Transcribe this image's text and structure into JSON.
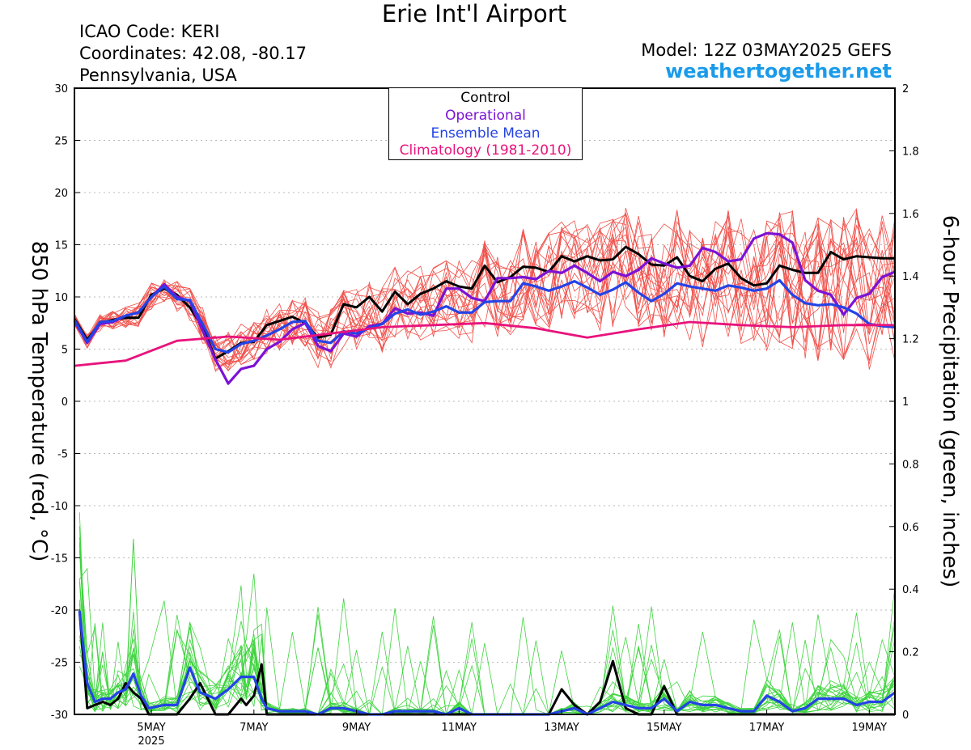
{
  "header": {
    "title": "Erie Int'l Airport",
    "icao": "ICAO Code: KERI",
    "coords": "Coordinates: 42.08, -80.17",
    "region": "Pennsylvania, USA",
    "model": "Model: 12Z 03MAY2025 GEFS",
    "site": "weathertogether.net"
  },
  "colors": {
    "member_temp": "#f0504a",
    "member_precip": "#3ed43e",
    "control": "#000000",
    "operational": "#7b12d6",
    "mean": "#2443e6",
    "climatology": "#e8137c"
  },
  "chart_data": {
    "type": "line",
    "title": "Erie Int'l Airport",
    "ylabel": "850 hPa Temperature (red, °C)",
    "y2label": "6-hour Precipitation (green, inches)",
    "ylim": [
      -30,
      30
    ],
    "y2lim": [
      0,
      2
    ],
    "yticks": [
      30,
      25,
      20,
      15,
      10,
      5,
      0,
      -5,
      -10,
      -15,
      -20,
      -25,
      -30
    ],
    "y2ticks": [
      "2",
      "1.8",
      "1.6",
      "1.4",
      "1.2",
      "1",
      "0.8",
      "0.6",
      "0.4",
      "0.2",
      "0"
    ],
    "xlim": [
      3.5,
      19.5
    ],
    "xticks": [
      {
        "day": 5,
        "label": "5MAY",
        "sub": "2025"
      },
      {
        "day": 7,
        "label": "7MAY"
      },
      {
        "day": 9,
        "label": "9MAY"
      },
      {
        "day": 11,
        "label": "11MAY"
      },
      {
        "day": 13,
        "label": "13MAY"
      },
      {
        "day": 15,
        "label": "15MAY"
      },
      {
        "day": 17,
        "label": "17MAY"
      },
      {
        "day": 19,
        "label": "19MAY"
      }
    ],
    "legend": [
      "Control",
      "Operational",
      "Ensemble Mean",
      "Climatology (1981-2010)"
    ],
    "legend_position": "top-center",
    "grid": "horizontal dotted",
    "series": [
      {
        "name": "Control",
        "axis": "temp",
        "x": [
          3.5,
          3.75,
          4.0,
          4.25,
          4.5,
          4.75,
          5.0,
          5.25,
          5.5,
          5.75,
          6.0,
          6.25,
          6.5,
          6.75,
          7.0,
          7.25,
          7.5,
          7.75,
          8.0,
          8.25,
          8.5,
          8.75,
          9.0,
          9.25,
          9.5,
          9.75,
          10.0,
          10.25,
          10.5,
          10.75,
          11.0,
          11.25,
          11.5,
          11.75,
          12.0,
          12.25,
          12.5,
          12.75,
          13.0,
          13.25,
          13.5,
          13.75,
          14.0,
          14.25,
          14.5,
          14.75,
          15.0,
          15.25,
          15.5,
          15.75,
          16.0,
          16.25,
          16.5,
          16.75,
          17.0,
          17.25,
          17.5,
          17.75,
          18.0,
          18.25,
          18.5,
          18.75,
          19.0,
          19.25,
          19.5
        ],
        "y": [
          7.9,
          5.9,
          7.5,
          7.8,
          8.0,
          8.0,
          10.2,
          10.8,
          10.2,
          9.0,
          7.1,
          4.1,
          4.8,
          5.6,
          5.7,
          7.3,
          7.7,
          8.1,
          7.5,
          6.1,
          6.4,
          9.3,
          9.0,
          10.0,
          8.6,
          10.5,
          9.3,
          10.3,
          10.8,
          11.5,
          11.0,
          10.8,
          13.0,
          11.4,
          11.9,
          12.9,
          12.8,
          12.4,
          13.9,
          13.4,
          13.9,
          13.5,
          13.6,
          14.8,
          14.1,
          13.1,
          13.0,
          13.8,
          12.0,
          11.5,
          12.7,
          13.2,
          11.8,
          11.1,
          11.3,
          13.0,
          12.6,
          12.3,
          12.3,
          14.3,
          13.6,
          13.9,
          13.8,
          13.7,
          13.7
        ]
      },
      {
        "name": "Operational",
        "axis": "temp",
        "x": [
          3.5,
          3.75,
          4.0,
          4.25,
          4.5,
          4.75,
          5.0,
          5.25,
          5.5,
          5.75,
          6.0,
          6.25,
          6.5,
          6.75,
          7.0,
          7.25,
          7.5,
          7.75,
          8.0,
          8.25,
          8.5,
          8.75,
          9.0,
          9.25,
          9.5,
          9.75,
          10.0,
          10.25,
          10.5,
          10.75,
          11.0,
          11.25,
          11.5,
          11.75,
          12.0,
          12.25,
          12.5,
          12.75,
          13.0,
          13.25,
          13.5,
          13.75,
          14.0,
          14.25,
          14.5,
          14.75,
          15.0,
          15.25,
          15.5,
          15.75,
          16.0,
          16.25,
          16.5,
          16.75,
          17.0,
          17.25,
          17.5,
          17.75,
          18.0,
          18.25,
          18.5,
          18.75,
          19.0,
          19.25,
          19.5
        ],
        "y": [
          7.7,
          5.6,
          7.4,
          7.6,
          8.2,
          8.5,
          10.0,
          11.2,
          10.0,
          9.6,
          6.8,
          4.0,
          1.7,
          3.1,
          3.4,
          5.0,
          5.7,
          6.9,
          7.5,
          5.3,
          4.8,
          6.5,
          6.2,
          7.2,
          7.4,
          8.9,
          8.4,
          8.5,
          8.2,
          10.8,
          10.8,
          9.9,
          9.6,
          11.8,
          11.8,
          11.9,
          11.7,
          12.5,
          12.3,
          13.0,
          12.3,
          11.5,
          12.4,
          12.0,
          12.6,
          13.7,
          13.2,
          12.8,
          13.0,
          14.7,
          14.3,
          13.4,
          13.6,
          15.6,
          16.1,
          16.0,
          15.2,
          11.6,
          10.6,
          10.2,
          8.3,
          9.9,
          10.3,
          11.9,
          12.4
        ]
      },
      {
        "name": "Ensemble Mean",
        "axis": "temp",
        "x": [
          3.5,
          3.75,
          4.0,
          4.25,
          4.5,
          4.75,
          5.0,
          5.25,
          5.5,
          5.75,
          6.0,
          6.25,
          6.5,
          6.75,
          7.0,
          7.25,
          7.5,
          7.75,
          8.0,
          8.25,
          8.5,
          8.75,
          9.0,
          9.25,
          9.5,
          9.75,
          10.0,
          10.25,
          10.5,
          10.75,
          11.0,
          11.25,
          11.5,
          11.75,
          12.0,
          12.25,
          12.5,
          12.75,
          13.0,
          13.25,
          13.5,
          13.75,
          14.0,
          14.25,
          14.5,
          14.75,
          15.0,
          15.25,
          15.5,
          15.75,
          16.0,
          16.25,
          16.5,
          16.75,
          17.0,
          17.25,
          17.5,
          17.75,
          18.0,
          18.25,
          18.5,
          18.75,
          19.0,
          19.25,
          19.5
        ],
        "y": [
          7.8,
          5.7,
          7.6,
          7.7,
          8.2,
          8.5,
          10.0,
          11.0,
          9.8,
          9.7,
          7.4,
          5.0,
          4.7,
          5.5,
          5.8,
          6.3,
          6.9,
          7.6,
          7.7,
          5.8,
          5.6,
          6.7,
          6.5,
          7.0,
          7.4,
          8.4,
          8.8,
          8.3,
          8.6,
          9.1,
          8.5,
          8.5,
          9.5,
          9.6,
          9.6,
          11.3,
          11.0,
          10.6,
          11.0,
          11.5,
          10.9,
          10.2,
          10.7,
          11.4,
          10.4,
          9.6,
          10.3,
          11.3,
          11.0,
          10.8,
          10.6,
          11.1,
          10.9,
          10.6,
          10.8,
          11.6,
          10.2,
          9.4,
          9.2,
          9.3,
          9.0,
          8.4,
          7.4,
          7.2,
          7.1
        ]
      },
      {
        "name": "Climatology (1981-2010)",
        "axis": "temp",
        "x": [
          3.5,
          4.5,
          5.5,
          6.5,
          7.5,
          8.5,
          9.5,
          10.5,
          11.5,
          12.5,
          13.5,
          14.5,
          15.5,
          16.5,
          17.5,
          18.5,
          19.5
        ],
        "y": [
          3.4,
          3.9,
          5.8,
          6.2,
          5.9,
          6.5,
          7.1,
          7.3,
          7.5,
          7.0,
          6.1,
          6.9,
          7.6,
          7.3,
          7.1,
          7.3,
          7.3
        ]
      },
      {
        "name": "Control",
        "axis": "precip",
        "x": [
          3.6,
          3.75,
          3.9,
          4.05,
          4.2,
          4.35,
          4.5,
          4.65,
          4.8,
          4.95,
          5.25,
          5.5,
          5.75,
          5.95,
          6.25,
          6.5,
          6.75,
          6.85,
          7.0,
          7.15,
          7.25,
          7.5,
          8.0,
          8.5,
          9.0,
          9.5,
          10.0,
          10.5,
          11.0,
          11.5,
          12.0,
          12.5,
          12.75,
          13.0,
          13.25,
          13.5,
          13.75,
          14.0,
          14.25,
          14.5,
          14.75,
          15.0,
          15.25,
          15.5,
          16.0,
          16.5,
          17.0,
          17.5,
          18.0,
          18.5,
          19.0,
          19.5
        ],
        "y": [
          0.33,
          0.02,
          0.03,
          0.04,
          0.03,
          0.05,
          0.1,
          0.07,
          0.05,
          0.0,
          0.0,
          0.0,
          0.05,
          0.1,
          0.0,
          0.0,
          0.05,
          0.03,
          0.06,
          0.16,
          0.0,
          0.0,
          0.0,
          0.0,
          0.0,
          0.0,
          0.0,
          0.0,
          0.0,
          0.0,
          0.0,
          0.0,
          0.0,
          0.08,
          0.03,
          0.0,
          0.04,
          0.17,
          0.02,
          0.0,
          0.0,
          0.09,
          0.0,
          0.0,
          0.0,
          0.0,
          0.0,
          0.0,
          0.0,
          0.0,
          0.0,
          0.0
        ]
      },
      {
        "name": "Ensemble Mean",
        "axis": "precip",
        "x": [
          3.6,
          3.75,
          3.9,
          4.05,
          4.2,
          4.35,
          4.5,
          4.65,
          4.8,
          4.95,
          5.25,
          5.5,
          5.75,
          5.95,
          6.25,
          6.5,
          6.75,
          6.85,
          7.0,
          7.15,
          7.25,
          7.5,
          7.75,
          8.0,
          8.25,
          8.5,
          8.75,
          9.0,
          9.25,
          9.5,
          9.75,
          10.0,
          10.25,
          10.5,
          10.75,
          11.0,
          11.25,
          11.5,
          11.75,
          12.0,
          12.25,
          12.5,
          12.75,
          13.0,
          13.25,
          13.5,
          13.75,
          14.0,
          14.25,
          14.5,
          14.75,
          15.0,
          15.25,
          15.5,
          15.75,
          16.0,
          16.25,
          16.5,
          16.75,
          17.0,
          17.25,
          17.5,
          17.75,
          18.0,
          18.25,
          18.5,
          18.75,
          19.0,
          19.25,
          19.5
        ],
        "y": [
          0.33,
          0.1,
          0.04,
          0.05,
          0.05,
          0.07,
          0.08,
          0.13,
          0.06,
          0.02,
          0.03,
          0.03,
          0.15,
          0.07,
          0.05,
          0.08,
          0.12,
          0.12,
          0.12,
          0.05,
          0.02,
          0.01,
          0.01,
          0.01,
          0.0,
          0.02,
          0.02,
          0.01,
          0.0,
          0.0,
          0.01,
          0.01,
          0.01,
          0.01,
          0.0,
          0.02,
          0.0,
          0.0,
          0.0,
          0.0,
          0.0,
          0.0,
          0.0,
          0.01,
          0.02,
          0.0,
          0.02,
          0.04,
          0.03,
          0.02,
          0.02,
          0.05,
          0.01,
          0.04,
          0.03,
          0.03,
          0.02,
          0.01,
          0.01,
          0.06,
          0.04,
          0.01,
          0.02,
          0.05,
          0.05,
          0.05,
          0.03,
          0.04,
          0.04,
          0.07
        ]
      }
    ]
  }
}
